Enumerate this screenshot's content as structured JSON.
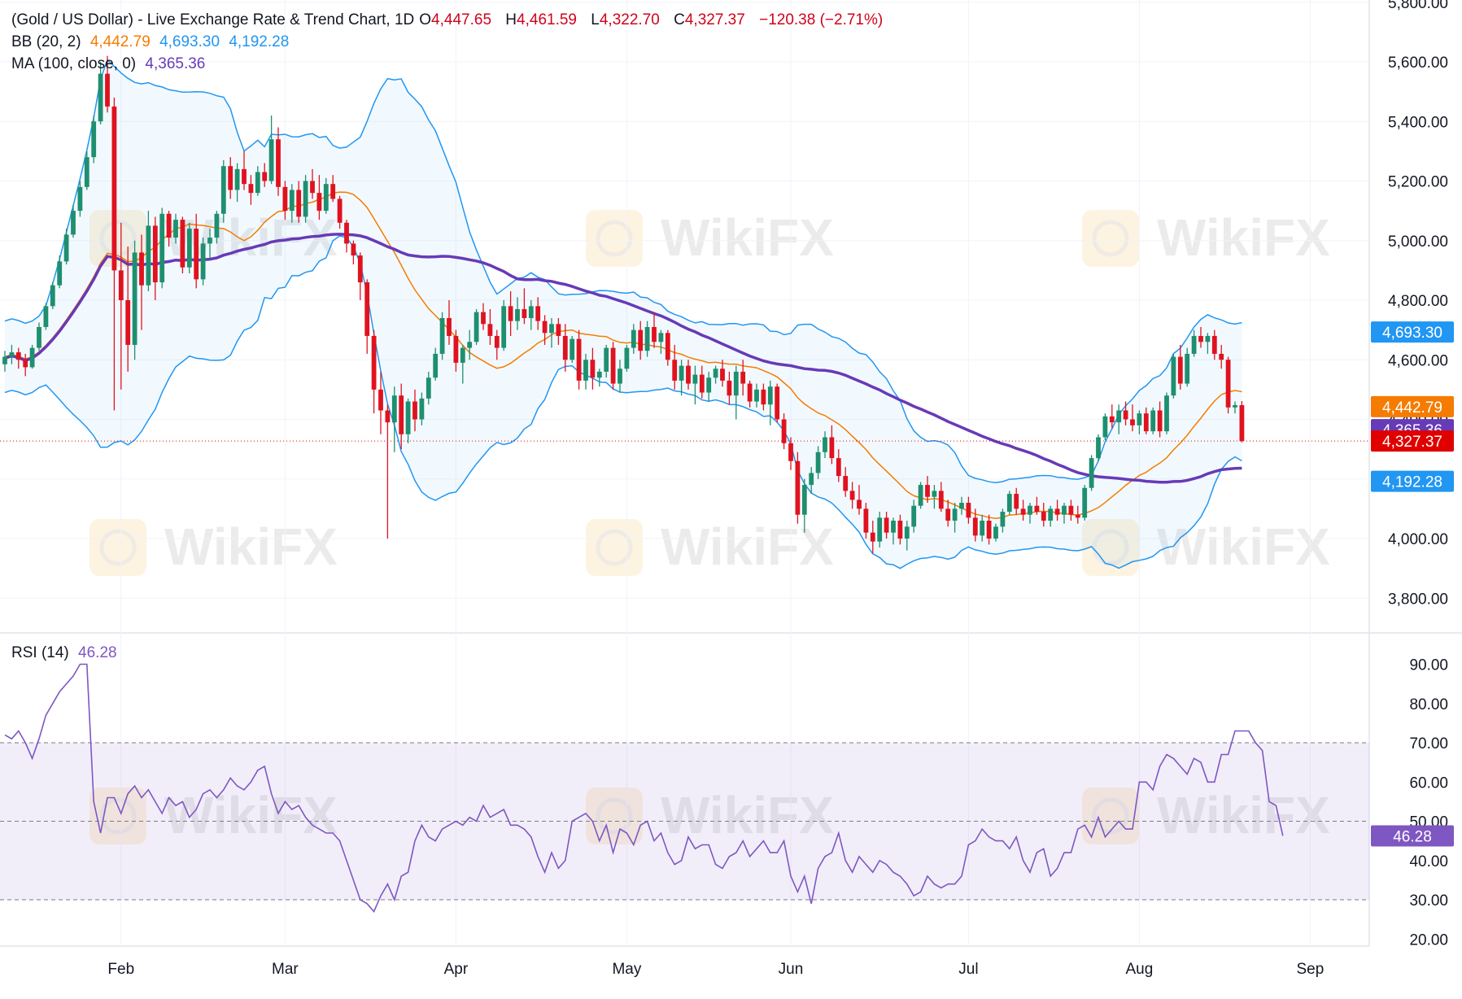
{
  "chart_data": {
    "type": "candlestick",
    "symbol_title": "(Gold / US Dollar) - Live Exchange Rate & Trend Chart, 1D",
    "ohlc_readout": {
      "open_label": "O",
      "open": "4,447.65",
      "high_label": "H",
      "high": "4,461.59",
      "low_label": "L",
      "low": "4,322.70",
      "close_label": "C",
      "close": "4,327.37",
      "change": "−120.38 (−2.71%)"
    },
    "bb_legend": {
      "label": "BB (20, 2)",
      "middle": "4,442.79",
      "upper": "4,693.30",
      "lower": "4,192.28"
    },
    "ma_legend": {
      "label": "MA (100, close, 0)",
      "value": "4,365.36"
    },
    "rsi_legend": {
      "label": "RSI (14)",
      "value": "46.28"
    },
    "y_ticks": [
      "3,800.00",
      "4,000.00",
      "4,200.00",
      "4,400.00",
      "4,600.00",
      "4,800.00",
      "5,000.00",
      "5,200.00",
      "5,400.00",
      "5,600.00",
      "5,800.00"
    ],
    "y_tick_values": [
      3800,
      4000,
      4200,
      4400,
      4600,
      4800,
      5000,
      5200,
      5400,
      5600,
      5800
    ],
    "price_range": [
      3700,
      5830
    ],
    "x_ticks": [
      "Feb",
      "Mar",
      "Apr",
      "May",
      "Jun",
      "Jul",
      "Aug",
      "Sep"
    ],
    "x_tick_index": [
      17,
      41,
      66,
      91,
      115,
      141,
      166,
      191
    ],
    "rsi_ticks": [
      "20.00",
      "30.00",
      "40.00",
      "50.00",
      "60.00",
      "70.00",
      "80.00",
      "90.00"
    ],
    "rsi_tick_values": [
      20,
      30,
      40,
      50,
      60,
      70,
      80,
      90
    ],
    "rsi_range": [
      17,
      93
    ],
    "rsi_band": [
      30,
      70
    ],
    "price_labels": [
      {
        "text": "4,693.30",
        "value": 4693.3,
        "color": "#2196f3"
      },
      {
        "text": "4,442.79",
        "value": 4442.79,
        "color": "#f57c00"
      },
      {
        "text": "4,365.36",
        "value": 4365.36,
        "color": "#673ab7"
      },
      {
        "text": "4,327.37",
        "value": 4327.37,
        "color": "#e00000"
      },
      {
        "text": "4,192.28",
        "value": 4192.28,
        "color": "#2196f3"
      }
    ],
    "rsi_label": {
      "text": "46.28",
      "value": 46.28,
      "color": "#7e57c2"
    },
    "current_price": 4327.37,
    "watermark": "WikiFX",
    "ohlc": [
      [
        4585,
        4630,
        4560,
        4610
      ],
      [
        4610,
        4650,
        4585,
        4625
      ],
      [
        4625,
        4640,
        4570,
        4600
      ],
      [
        4600,
        4620,
        4545,
        4575
      ],
      [
        4575,
        4650,
        4570,
        4640
      ],
      [
        4640,
        4725,
        4630,
        4710
      ],
      [
        4710,
        4790,
        4700,
        4780
      ],
      [
        4780,
        4860,
        4770,
        4850
      ],
      [
        4850,
        4950,
        4840,
        4930
      ],
      [
        4930,
        5040,
        4920,
        5020
      ],
      [
        5020,
        5120,
        5010,
        5100
      ],
      [
        5100,
        5200,
        5080,
        5180
      ],
      [
        5180,
        5300,
        5170,
        5280
      ],
      [
        5280,
        5420,
        5260,
        5400
      ],
      [
        5400,
        5600,
        5390,
        5560
      ],
      [
        5560,
        5620,
        5430,
        5450
      ],
      [
        5450,
        5480,
        4430,
        4900
      ],
      [
        4900,
        5060,
        4500,
        4800
      ],
      [
        4800,
        4980,
        4560,
        4650
      ],
      [
        4650,
        5000,
        4600,
        4960
      ],
      [
        4960,
        5020,
        4700,
        4850
      ],
      [
        4850,
        5100,
        4830,
        5050
      ],
      [
        5050,
        5080,
        4800,
        4860
      ],
      [
        4860,
        5110,
        4840,
        5090
      ],
      [
        5090,
        5100,
        4980,
        5010
      ],
      [
        5010,
        5090,
        4990,
        5070
      ],
      [
        5070,
        5080,
        4890,
        4910
      ],
      [
        4910,
        5060,
        4890,
        5040
      ],
      [
        5040,
        5090,
        4840,
        4870
      ],
      [
        4870,
        5010,
        4850,
        4990
      ],
      [
        4990,
        5040,
        4940,
        5010
      ],
      [
        5010,
        5100,
        4990,
        5090
      ],
      [
        5090,
        5270,
        5060,
        5250
      ],
      [
        5250,
        5280,
        5140,
        5170
      ],
      [
        5170,
        5260,
        5130,
        5240
      ],
      [
        5240,
        5300,
        5170,
        5190
      ],
      [
        5190,
        5220,
        5120,
        5160
      ],
      [
        5160,
        5250,
        5150,
        5230
      ],
      [
        5230,
        5260,
        5180,
        5200
      ],
      [
        5200,
        5420,
        5190,
        5340
      ],
      [
        5340,
        5380,
        5150,
        5180
      ],
      [
        5180,
        5200,
        5070,
        5100
      ],
      [
        5100,
        5190,
        5060,
        5170
      ],
      [
        5170,
        5200,
        5060,
        5080
      ],
      [
        5080,
        5220,
        5060,
        5200
      ],
      [
        5200,
        5240,
        5140,
        5160
      ],
      [
        5160,
        5220,
        5070,
        5100
      ],
      [
        5100,
        5210,
        5090,
        5190
      ],
      [
        5190,
        5220,
        5130,
        5140
      ],
      [
        5140,
        5150,
        5040,
        5060
      ],
      [
        5060,
        5070,
        4960,
        4990
      ],
      [
        4990,
        5000,
        4920,
        4950
      ],
      [
        4950,
        4960,
        4800,
        4860
      ],
      [
        4860,
        4870,
        4620,
        4680
      ],
      [
        4680,
        4700,
        4420,
        4500
      ],
      [
        4500,
        4560,
        4350,
        4430
      ],
      [
        4430,
        4450,
        4000,
        4390
      ],
      [
        4390,
        4510,
        4290,
        4480
      ],
      [
        4480,
        4520,
        4300,
        4350
      ],
      [
        4350,
        4470,
        4320,
        4460
      ],
      [
        4460,
        4500,
        4360,
        4400
      ],
      [
        4400,
        4490,
        4380,
        4470
      ],
      [
        4470,
        4560,
        4450,
        4540
      ],
      [
        4540,
        4640,
        4530,
        4620
      ],
      [
        4620,
        4760,
        4600,
        4740
      ],
      [
        4740,
        4800,
        4650,
        4680
      ],
      [
        4680,
        4700,
        4560,
        4590
      ],
      [
        4590,
        4650,
        4520,
        4640
      ],
      [
        4640,
        4700,
        4600,
        4660
      ],
      [
        4660,
        4770,
        4650,
        4760
      ],
      [
        4760,
        4790,
        4700,
        4720
      ],
      [
        4720,
        4770,
        4650,
        4680
      ],
      [
        4680,
        4700,
        4600,
        4640
      ],
      [
        4640,
        4800,
        4630,
        4780
      ],
      [
        4780,
        4830,
        4680,
        4730
      ],
      [
        4730,
        4810,
        4700,
        4770
      ],
      [
        4770,
        4840,
        4720,
        4740
      ],
      [
        4740,
        4800,
        4700,
        4780
      ],
      [
        4780,
        4810,
        4700,
        4730
      ],
      [
        4730,
        4750,
        4650,
        4690
      ],
      [
        4690,
        4740,
        4640,
        4720
      ],
      [
        4720,
        4740,
        4650,
        4680
      ],
      [
        4680,
        4720,
        4560,
        4600
      ],
      [
        4600,
        4680,
        4590,
        4670
      ],
      [
        4670,
        4700,
        4500,
        4530
      ],
      [
        4530,
        4620,
        4500,
        4600
      ],
      [
        4600,
        4640,
        4500,
        4540
      ],
      [
        4540,
        4570,
        4510,
        4560
      ],
      [
        4560,
        4650,
        4540,
        4640
      ],
      [
        4640,
        4660,
        4500,
        4520
      ],
      [
        4520,
        4600,
        4490,
        4570
      ],
      [
        4570,
        4650,
        4560,
        4640
      ],
      [
        4640,
        4720,
        4620,
        4700
      ],
      [
        4700,
        4730,
        4600,
        4630
      ],
      [
        4630,
        4730,
        4610,
        4710
      ],
      [
        4710,
        4760,
        4640,
        4660
      ],
      [
        4660,
        4700,
        4620,
        4690
      ],
      [
        4690,
        4700,
        4580,
        4600
      ],
      [
        4600,
        4650,
        4500,
        4530
      ],
      [
        4530,
        4600,
        4480,
        4580
      ],
      [
        4580,
        4600,
        4500,
        4520
      ],
      [
        4520,
        4580,
        4450,
        4550
      ],
      [
        4550,
        4580,
        4470,
        4490
      ],
      [
        4490,
        4560,
        4460,
        4540
      ],
      [
        4540,
        4580,
        4520,
        4570
      ],
      [
        4570,
        4600,
        4510,
        4530
      ],
      [
        4530,
        4560,
        4450,
        4480
      ],
      [
        4480,
        4580,
        4400,
        4560
      ],
      [
        4560,
        4600,
        4480,
        4520
      ],
      [
        4520,
        4530,
        4440,
        4460
      ],
      [
        4460,
        4520,
        4440,
        4500
      ],
      [
        4500,
        4520,
        4430,
        4450
      ],
      [
        4450,
        4530,
        4380,
        4510
      ],
      [
        4510,
        4520,
        4390,
        4400
      ],
      [
        4400,
        4420,
        4300,
        4320
      ],
      [
        4320,
        4340,
        4230,
        4260
      ],
      [
        4260,
        4290,
        4050,
        4080
      ],
      [
        4080,
        4200,
        4020,
        4180
      ],
      [
        4180,
        4240,
        4150,
        4220
      ],
      [
        4220,
        4310,
        4200,
        4290
      ],
      [
        4290,
        4360,
        4270,
        4340
      ],
      [
        4340,
        4380,
        4250,
        4270
      ],
      [
        4270,
        4300,
        4190,
        4210
      ],
      [
        4210,
        4240,
        4140,
        4160
      ],
      [
        4160,
        4190,
        4100,
        4130
      ],
      [
        4130,
        4180,
        4080,
        4100
      ],
      [
        4100,
        4120,
        4000,
        4020
      ],
      [
        4020,
        4060,
        3950,
        3990
      ],
      [
        3990,
        4090,
        3970,
        4070
      ],
      [
        4070,
        4090,
        4000,
        4020
      ],
      [
        4020,
        4070,
        3980,
        4060
      ],
      [
        4060,
        4080,
        3980,
        4000
      ],
      [
        4000,
        4060,
        3960,
        4040
      ],
      [
        4040,
        4130,
        4020,
        4110
      ],
      [
        4110,
        4190,
        4100,
        4180
      ],
      [
        4180,
        4210,
        4120,
        4140
      ],
      [
        4140,
        4180,
        4100,
        4160
      ],
      [
        4160,
        4190,
        4090,
        4100
      ],
      [
        4100,
        4130,
        4040,
        4060
      ],
      [
        4060,
        4120,
        4020,
        4100
      ],
      [
        4100,
        4140,
        4080,
        4120
      ],
      [
        4120,
        4140,
        4050,
        4070
      ],
      [
        4070,
        4100,
        3990,
        4010
      ],
      [
        4010,
        4080,
        3990,
        4060
      ],
      [
        4060,
        4080,
        3980,
        4000
      ],
      [
        4000,
        4050,
        3990,
        4040
      ],
      [
        4040,
        4100,
        4020,
        4090
      ],
      [
        4090,
        4160,
        4080,
        4150
      ],
      [
        4150,
        4170,
        4080,
        4100
      ],
      [
        4100,
        4130,
        4060,
        4080
      ],
      [
        4080,
        4120,
        4050,
        4110
      ],
      [
        4110,
        4140,
        4080,
        4090
      ],
      [
        4090,
        4120,
        4040,
        4060
      ],
      [
        4060,
        4110,
        4040,
        4100
      ],
      [
        4100,
        4130,
        4060,
        4080
      ],
      [
        4080,
        4120,
        4050,
        4110
      ],
      [
        4110,
        4130,
        4060,
        4080
      ],
      [
        4080,
        4110,
        4050,
        4070
      ],
      [
        4070,
        4180,
        4060,
        4170
      ],
      [
        4170,
        4280,
        4160,
        4270
      ],
      [
        4270,
        4350,
        4260,
        4340
      ],
      [
        4340,
        4420,
        4330,
        4410
      ],
      [
        4410,
        4450,
        4370,
        4390
      ],
      [
        4390,
        4450,
        4350,
        4430
      ],
      [
        4430,
        4460,
        4380,
        4400
      ],
      [
        4400,
        4450,
        4360,
        4380
      ],
      [
        4380,
        4430,
        4350,
        4420
      ],
      [
        4420,
        4440,
        4350,
        4360
      ],
      [
        4360,
        4440,
        4350,
        4430
      ],
      [
        4430,
        4460,
        4340,
        4360
      ],
      [
        4360,
        4490,
        4350,
        4480
      ],
      [
        4480,
        4620,
        4470,
        4610
      ],
      [
        4610,
        4650,
        4500,
        4520
      ],
      [
        4520,
        4640,
        4510,
        4620
      ],
      [
        4620,
        4700,
        4610,
        4680
      ],
      [
        4680,
        4710,
        4640,
        4660
      ],
      [
        4660,
        4690,
        4620,
        4680
      ],
      [
        4680,
        4700,
        4600,
        4620
      ],
      [
        4620,
        4650,
        4570,
        4600
      ],
      [
        4600,
        4610,
        4420,
        4440
      ],
      [
        4440,
        4460,
        4420,
        4448
      ],
      [
        4447.65,
        4461.59,
        4322.7,
        4327.37
      ]
    ],
    "rsi_values": [
      72,
      71,
      73,
      70,
      66,
      71,
      77,
      80,
      83,
      85,
      87,
      90,
      90,
      55,
      47,
      56,
      56,
      52,
      57,
      59,
      56,
      58,
      55,
      52,
      56,
      54,
      55,
      51,
      53,
      57,
      58,
      56,
      58,
      61,
      59,
      58,
      60,
      63,
      64,
      57,
      52,
      55,
      53,
      54,
      51,
      49,
      48,
      47,
      47,
      45,
      40,
      35,
      30,
      29,
      27,
      31,
      34,
      30,
      36,
      37,
      45,
      49,
      46,
      45,
      48,
      49,
      50,
      49,
      51,
      50,
      54,
      51,
      52,
      53,
      49,
      49,
      48,
      46,
      41,
      37,
      42,
      38,
      40,
      50,
      51,
      52,
      50,
      45,
      49,
      42,
      48,
      47,
      44,
      49,
      50,
      45,
      47,
      42,
      39,
      40,
      46,
      43,
      44,
      44,
      39,
      38,
      41,
      42,
      45,
      41,
      43,
      45,
      42,
      42,
      45,
      36,
      32,
      36,
      29,
      38,
      41,
      42,
      47,
      40,
      37,
      41,
      39,
      37,
      40,
      39,
      37,
      36,
      34,
      31,
      32,
      36,
      34,
      33,
      34,
      34,
      36,
      44,
      45,
      48,
      46,
      45,
      45,
      43,
      46,
      40,
      37,
      42,
      43,
      36,
      38,
      42,
      42,
      48,
      49,
      46,
      51,
      46,
      48,
      50,
      48,
      48,
      60,
      60,
      58,
      64,
      67,
      66,
      64,
      62,
      66,
      65,
      60,
      60,
      67,
      67,
      73,
      73,
      73,
      70,
      68,
      55,
      54,
      46.28
    ]
  }
}
